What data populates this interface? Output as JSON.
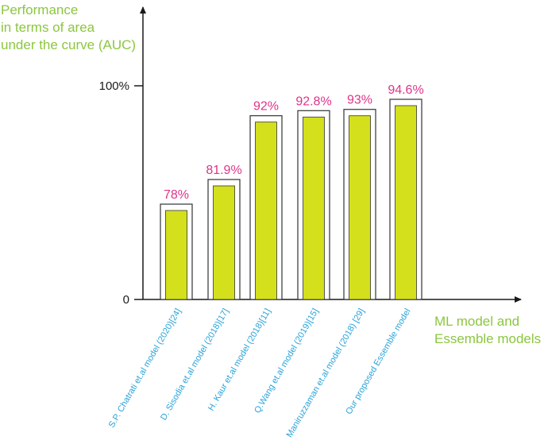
{
  "chart_data": {
    "type": "bar",
    "ylabel_lines": [
      "Performance",
      "in terms of area",
      "under the curve (AUC)"
    ],
    "xlabel_lines": [
      "ML model and",
      "Essemble models"
    ],
    "yticks": [
      {
        "value": 0,
        "label": "0"
      },
      {
        "value": 100,
        "label": "100%"
      }
    ],
    "ylim": [
      0,
      100
    ],
    "categories": [
      "S.P. Chatrati et.al model (2020)[24]",
      "D. Sisodia et.al model (2018)[17]",
      "H. Kaur et.al model (2018)[11]",
      "Q.Wang et.al model (2019)[15]",
      "Maniruzzaman et.al model (2018) [29]",
      "Our proposed Essemble  model"
    ],
    "values": [
      78,
      81.9,
      92,
      92.8,
      93,
      94.6
    ],
    "data_labels": [
      "78%",
      "81.9%",
      "92%",
      "92.8%",
      "93%",
      "94.6%"
    ],
    "grid": false,
    "colors": {
      "bar_fill": "#d4e01c",
      "bar_outline": "#333333",
      "axis": "#1a1a1a",
      "axis_title": "#8cc63f",
      "data_label": "#e0338a",
      "category_label": "#29a3d9"
    }
  }
}
